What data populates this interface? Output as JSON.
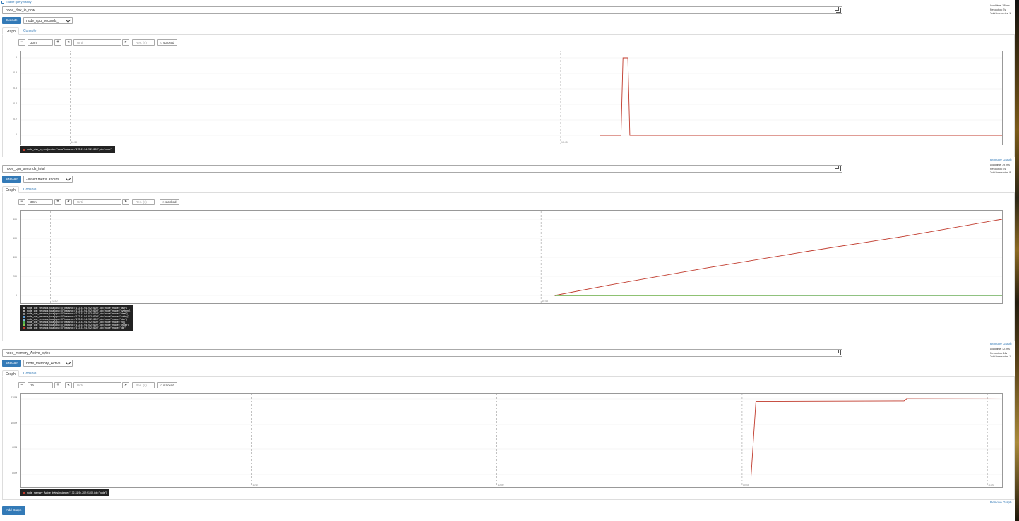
{
  "top": {
    "enable_history_label": "Enable query history"
  },
  "colors": {
    "accent": "#337ab7",
    "series_red": "#c0392b",
    "legend_bg": "#222222"
  },
  "panels": [
    {
      "expression": "node_disk_io_now",
      "metric_select": "node_cpu_seconds_",
      "execute_label": "Execute",
      "tabs": [
        "Graph",
        "Console"
      ],
      "range": "30m",
      "until_placeholder": "Until",
      "res_placeholder": "Res. (s)",
      "stacked_label": "stacked",
      "stats": [
        "Load time: 289ms",
        "Resolution: 7s",
        "Total time series: 1"
      ],
      "remove_label": "Remove Graph",
      "chart_data": {
        "type": "line",
        "y_ticks": [
          "1",
          "0.8",
          "0.6",
          "0.4",
          "0.2",
          "0"
        ],
        "ylim": [
          0,
          1
        ],
        "x_ticks": [
          "10:30",
          "10:45"
        ],
        "series": [
          {
            "name": "node_disk_io_now{device=\"xvda\",instance=\"172.31.94.202:9100\",job=\"node\"}",
            "color": "#c0392b",
            "x": [
              0.59,
              0.6,
              0.6115,
              0.6135,
              0.6185,
              0.6205,
              1.0
            ],
            "y": [
              0,
              0,
              0,
              1,
              1,
              0,
              0
            ]
          }
        ]
      },
      "legend": [
        {
          "label": "node_disk_io_now{device=\"xvda\",instance=\"172.31.94.202:9100\",job=\"node\"}",
          "color": "#c0392b"
        }
      ]
    },
    {
      "expression": "node_cpu_seconds_total",
      "metric_select": "- insert metric at curs",
      "execute_label": "Execute",
      "tabs": [
        "Graph",
        "Console"
      ],
      "range": "30m",
      "until_placeholder": "Until",
      "res_placeholder": "Res. (s)",
      "stacked_label": "stacked",
      "stats": [
        "Load time: 297ms",
        "Resolution: 7s",
        "Total time series: 8"
      ],
      "remove_label": "Remove Graph",
      "chart_data": {
        "type": "line",
        "y_ticks": [
          "800",
          "600",
          "400",
          "200",
          "0"
        ],
        "ylim": [
          0,
          800
        ],
        "x_ticks": [
          "10:30",
          "10:45"
        ],
        "series": [
          {
            "name": "node_cpu_seconds_total{cpu=\"0\",instance=\"172.31.94.202:9100\",job=\"node\",mode=\"user\"}",
            "color": "#bdbdbd",
            "x": [
              0.544,
              1.0
            ],
            "y": [
              0,
              2
            ]
          },
          {
            "name": "node_cpu_seconds_total{cpu=\"0\",instance=\"172.31.94.202:9100\",job=\"node\",mode=\"system\"}",
            "color": "#a5a5a5",
            "x": [
              0.544,
              1.0
            ],
            "y": [
              0,
              3
            ]
          },
          {
            "name": "node_cpu_seconds_total{cpu=\"0\",instance=\"172.31.94.202:9100\",job=\"node\",mode=\"steal\"}",
            "color": "#888888",
            "x": [
              0.544,
              1.0
            ],
            "y": [
              0,
              0
            ]
          },
          {
            "name": "node_cpu_seconds_total{cpu=\"0\",instance=\"172.31.94.202:9100\",job=\"node\",mode=\"softirq\"}",
            "color": "#5b9bd5",
            "x": [
              0.544,
              1.0
            ],
            "y": [
              0,
              0
            ]
          },
          {
            "name": "node_cpu_seconds_total{cpu=\"0\",instance=\"172.31.94.202:9100\",job=\"node\",mode=\"nice\"}",
            "color": "#7fb3d5",
            "x": [
              0.544,
              1.0
            ],
            "y": [
              0,
              0
            ]
          },
          {
            "name": "node_cpu_seconds_total{cpu=\"0\",instance=\"172.31.94.202:9100\",job=\"node\",mode=\"irq\"}",
            "color": "#4caf50",
            "x": [
              0.544,
              1.0
            ],
            "y": [
              0,
              0
            ]
          },
          {
            "name": "node_cpu_seconds_total{cpu=\"0\",instance=\"172.31.94.202:9100\",job=\"node\",mode=\"iowait\"}",
            "color": "#8bc34a",
            "x": [
              0.544,
              1.0
            ],
            "y": [
              0,
              1
            ]
          },
          {
            "name": "node_cpu_seconds_total{cpu=\"0\",instance=\"172.31.94.202:9100\",job=\"node\",mode=\"idle\"}",
            "color": "#c0392b",
            "x": [
              0.544,
              0.6,
              0.7,
              0.8,
              0.9,
              1.0
            ],
            "y": [
              0,
              110,
              290,
              460,
              620,
              800
            ]
          }
        ]
      },
      "legend": [
        {
          "label": "node_cpu_seconds_total{cpu=\"0\",instance=\"172.31.94.202:9100\",job=\"node\",mode=\"user\"}",
          "color": "#bdbdbd"
        },
        {
          "label": "node_cpu_seconds_total{cpu=\"0\",instance=\"172.31.94.202:9100\",job=\"node\",mode=\"system\"}",
          "color": "#a5a5a5"
        },
        {
          "label": "node_cpu_seconds_total{cpu=\"0\",instance=\"172.31.94.202:9100\",job=\"node\",mode=\"steal\"}",
          "color": "#888888"
        },
        {
          "label": "node_cpu_seconds_total{cpu=\"0\",instance=\"172.31.94.202:9100\",job=\"node\",mode=\"softirq\"}",
          "color": "#5b9bd5"
        },
        {
          "label": "node_cpu_seconds_total{cpu=\"0\",instance=\"172.31.94.202:9100\",job=\"node\",mode=\"nice\"}",
          "color": "#7fb3d5"
        },
        {
          "label": "node_cpu_seconds_total{cpu=\"0\",instance=\"172.31.94.202:9100\",job=\"node\",mode=\"irq\"}",
          "color": "#4caf50"
        },
        {
          "label": "node_cpu_seconds_total{cpu=\"0\",instance=\"172.31.94.202:9100\",job=\"node\",mode=\"iowait\"}",
          "color": "#8bc34a"
        },
        {
          "label": "node_cpu_seconds_total{cpu=\"0\",instance=\"172.31.94.202:9100\",job=\"node\",mode=\"idle\"}",
          "color": "#c0392b"
        }
      ]
    },
    {
      "expression": "node_memory_Active_bytes",
      "metric_select": "node_memory_Active",
      "execute_label": "Execute",
      "tabs": [
        "Graph",
        "Console"
      ],
      "range": "1h",
      "until_placeholder": "Until",
      "res_placeholder": "Res. (s)",
      "stacked_label": "stacked",
      "stats": [
        "Load time: 421ms",
        "Resolution: 14s",
        "Total time series: 1"
      ],
      "remove_label": "Remove Graph",
      "chart_data": {
        "type": "line",
        "y_ticks": [
          "110M",
          "100M",
          "90M",
          "80M"
        ],
        "ylim": [
          76000000,
          113000000
        ],
        "x_ticks": [
          "10:15",
          "10:30",
          "10:45",
          "11:00"
        ],
        "series": [
          {
            "name": "node_memory_Active_bytes{instance=\"172.31.94.202:9100\",job=\"node\"}",
            "color": "#c0392b",
            "x": [
              0.744,
              0.749,
              0.9,
              0.9035,
              1.0
            ],
            "y": [
              78500000,
              109000000,
              109200000,
              110300000,
              110400000
            ]
          }
        ]
      },
      "legend": [
        {
          "label": "node_memory_Active_bytes{instance=\"172.31.94.202:9100\",job=\"node\"}",
          "color": "#c0392b"
        }
      ]
    }
  ],
  "add_graph_label": "Add Graph"
}
